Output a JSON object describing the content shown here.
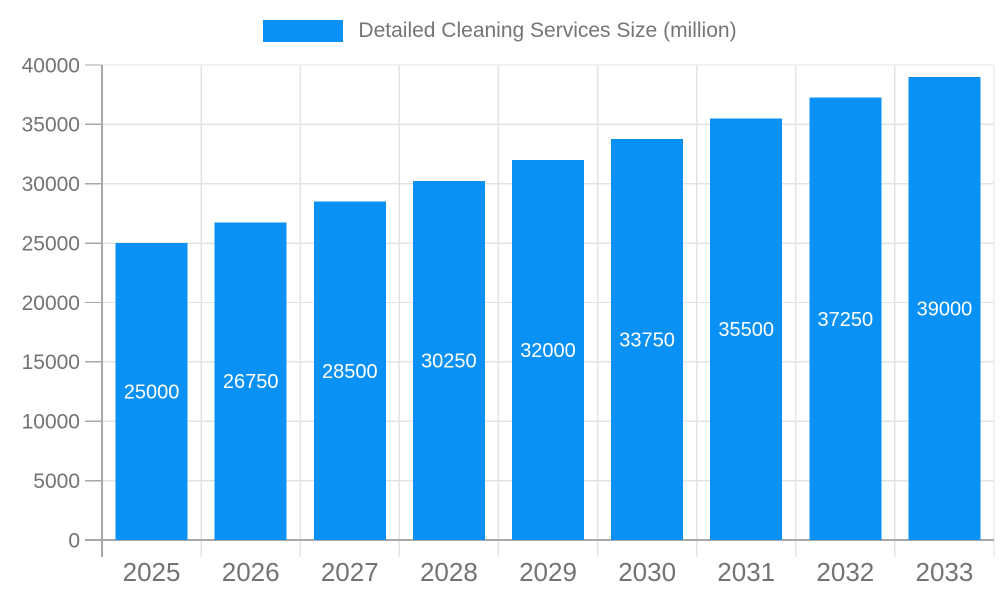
{
  "legend": {
    "label": "Detailed Cleaning Services Size (million)"
  },
  "chart_data": {
    "type": "bar",
    "title": "Detailed Cleaning Services Size (million)",
    "categories": [
      "2025",
      "2026",
      "2027",
      "2028",
      "2029",
      "2030",
      "2031",
      "2032",
      "2033"
    ],
    "values": [
      25000,
      26750,
      28500,
      30250,
      32000,
      33750,
      35500,
      37250,
      39000
    ],
    "bar_labels": [
      "25000",
      "26750",
      "28500",
      "30250",
      "32000",
      "33750",
      "35500",
      "37250",
      "39000"
    ],
    "xlabel": "",
    "ylabel": "",
    "ylim": [
      0,
      40000
    ],
    "yticks": [
      0,
      5000,
      10000,
      15000,
      20000,
      25000,
      30000,
      35000,
      40000
    ],
    "ytick_labels": [
      "0",
      "5000",
      "10000",
      "15000",
      "20000",
      "25000",
      "30000",
      "35000",
      "40000"
    ],
    "grid": true,
    "legend_position": "top",
    "colors": {
      "bar": "#0991f5",
      "bar_value_text": "#ffffff",
      "axis_line": "#a8a8a8",
      "grid_line": "#e3e3e3",
      "tick_text": "#737373",
      "legend_text": "#757575",
      "background": "#ffffff"
    }
  }
}
